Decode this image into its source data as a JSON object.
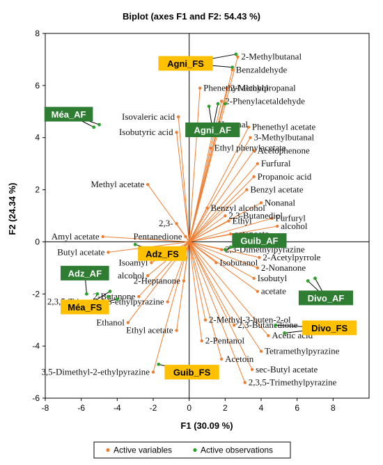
{
  "chart_data": {
    "type": "scatter",
    "title": "Biplot (axes F1 and F2: 54.43 %)",
    "xlabel": "F1 (30.09 %)",
    "ylabel": "F2 (24.34 %)",
    "xlim": [
      -8,
      10
    ],
    "ylim": [
      -6,
      8
    ],
    "xticks": [
      "-8",
      "-6",
      "-4",
      "-2",
      "0",
      "2",
      "4",
      "6",
      "8"
    ],
    "yticks": [
      "-6",
      "-4",
      "-2",
      "0",
      "2",
      "4",
      "6",
      "8"
    ],
    "legend": {
      "position": "bottom",
      "entries": [
        {
          "label": "Active variables",
          "color": "#ed7d31"
        },
        {
          "label": "Active observations",
          "color": "#2ca02c"
        }
      ]
    },
    "colors": {
      "variables": "#ed7d31",
      "observations": "#2ca02c",
      "fs_box": "#ffc000",
      "af_box": "#2e7d32"
    },
    "variables": [
      {
        "label": "2-Methylbutanal",
        "x": 2.7,
        "y": 7.1
      },
      {
        "label": "Benzaldehyde",
        "x": 2.4,
        "y": 6.6
      },
      {
        "label": "2-Methylpropanal",
        "x": 2.1,
        "y": 5.9
      },
      {
        "label": "2-Phenylacetaldehyde",
        "x": 1.8,
        "y": 5.4
      },
      {
        "label": "Phenethyl alcohol",
        "x": 0.6,
        "y": 5.9
      },
      {
        "label": "Isovaleric acid",
        "x": -0.6,
        "y": 4.8
      },
      {
        "label": "Hexanal",
        "x": 1.4,
        "y": 4.5
      },
      {
        "label": "Phenethyl acetate",
        "x": 3.3,
        "y": 4.4
      },
      {
        "label": "3-Methylbutanal",
        "x": 3.4,
        "y": 4.0
      },
      {
        "label": "Isobutyric acid",
        "x": -0.7,
        "y": 4.2
      },
      {
        "label": "Acetophenone",
        "x": 3.6,
        "y": 3.5
      },
      {
        "label": "Ethyl phenylacetate",
        "x": 1.2,
        "y": 3.6
      },
      {
        "label": "Furfural",
        "x": 3.8,
        "y": 3.0
      },
      {
        "label": "Propanoic acid",
        "x": 3.6,
        "y": 2.5
      },
      {
        "label": "Benzyl acetate",
        "x": 3.2,
        "y": 2.0
      },
      {
        "label": "Methyl acetate",
        "x": -2.3,
        "y": 2.2
      },
      {
        "label": "Nonanal",
        "x": 4.0,
        "y": 1.5
      },
      {
        "label": "Benzyl alcohol",
        "x": 1.0,
        "y": 1.3
      },
      {
        "label": "2,3-Butanediol",
        "x": 2.0,
        "y": 1.0
      },
      {
        "label": "Furfuryl",
        "x": 4.6,
        "y": 0.9
      },
      {
        "label": "alcohol",
        "x": 4.9,
        "y": 0.6
      },
      {
        "label": "Ethyl",
        "x": 2.2,
        "y": 0.8
      },
      {
        "label": "octanoate",
        "x": 2.3,
        "y": 0.3
      },
      {
        "label": "2,3-",
        "x": -0.7,
        "y": 0.7
      },
      {
        "label": "Pentanedione",
        "x": -0.2,
        "y": 0.2
      },
      {
        "label": "Amyl acetate",
        "x": -4.8,
        "y": 0.2
      },
      {
        "label": "Butyl acetate",
        "x": -4.5,
        "y": -0.4
      },
      {
        "label": "2,3-Dimethylpyrazine",
        "x": 1.8,
        "y": -0.3
      },
      {
        "label": "2-Acetylpyrrole",
        "x": 3.9,
        "y": -0.6
      },
      {
        "label": "Isobutanol",
        "x": 1.5,
        "y": -0.8
      },
      {
        "label": "Isoamyl",
        "x": -2.1,
        "y": -0.8
      },
      {
        "label": "2-Nonanone",
        "x": 3.8,
        "y": -1.0
      },
      {
        "label": "alcohol",
        "x": -2.3,
        "y": -1.3
      },
      {
        "label": "Isobutyl",
        "x": 3.6,
        "y": -1.4
      },
      {
        "label": "2-Heptanone",
        "x": -0.3,
        "y": -1.5
      },
      {
        "label": "acetate",
        "x": 3.8,
        "y": -1.9
      },
      {
        "label": "2-Butanone",
        "x": -2.8,
        "y": -2.1
      },
      {
        "label": "2,3,5-Trimethyl-6-ethylpyrazine",
        "x": -1.2,
        "y": -2.3
      },
      {
        "label": "2-Methyl-3-buten-2-ol",
        "x": 0.9,
        "y": -3.0
      },
      {
        "label": "Ethanol",
        "x": -3.4,
        "y": -3.1
      },
      {
        "label": "2,3-Butanedione",
        "x": 2.5,
        "y": -3.2
      },
      {
        "label": "Acetic acid",
        "x": 4.4,
        "y": -3.6
      },
      {
        "label": "Ethyl acetate",
        "x": -0.7,
        "y": -3.4
      },
      {
        "label": "2-Pentanol",
        "x": 0.7,
        "y": -3.8
      },
      {
        "label": "Tetramethylpyrazine",
        "x": 4.0,
        "y": -4.2
      },
      {
        "label": "Acetoin",
        "x": 1.8,
        "y": -4.5
      },
      {
        "label": "sec-Butyl acetate",
        "x": 3.5,
        "y": -4.9
      },
      {
        "label": "3,5-Dimethyl-2-ethylpyrazine",
        "x": -2.0,
        "y": -5.0
      },
      {
        "label": "2,3,5-Trimethylpyrazine",
        "x": 3.1,
        "y": -5.4
      }
    ],
    "observations": [
      {
        "label": "Agni_FS",
        "group": "FS",
        "x": 2.6,
        "y": 7.2
      },
      {
        "label": "Agni_FS",
        "group": "FS",
        "x": 2.4,
        "y": 6.7
      },
      {
        "label": "Agni_FS",
        "group": "FS",
        "x": 2.0,
        "y": 5.3
      },
      {
        "label": "Méa_AF",
        "group": "AF",
        "x": -5.3,
        "y": 4.4
      },
      {
        "label": "Méa_AF",
        "group": "AF",
        "x": -5.0,
        "y": 4.5
      },
      {
        "label": "Agni_AF",
        "group": "AF",
        "x": 1.1,
        "y": 5.2
      },
      {
        "label": "Agni_AF",
        "group": "AF",
        "x": 1.6,
        "y": 5.3
      },
      {
        "label": "Guib_AF",
        "group": "AF",
        "x": 2.3,
        "y": -0.2
      },
      {
        "label": "Guib_AF",
        "group": "AF",
        "x": 2.0,
        "y": -0.3
      },
      {
        "label": "Adz_FS",
        "group": "FS",
        "x": -3.0,
        "y": -0.1
      },
      {
        "label": "Adz_AF",
        "group": "AF",
        "x": -5.7,
        "y": -2.0
      },
      {
        "label": "Méa_FS",
        "group": "FS",
        "x": -4.0,
        "y": -2.2
      },
      {
        "label": "Méa_FS",
        "group": "FS",
        "x": -4.4,
        "y": -1.9
      },
      {
        "label": "Méa_FS",
        "group": "FS",
        "x": -4.5,
        "y": -2.1
      },
      {
        "label": "Méa_FS",
        "group": "FS",
        "x": -4.7,
        "y": -2.6
      },
      {
        "label": "Méa_FS",
        "group": "FS",
        "x": -5.1,
        "y": -2.0
      },
      {
        "label": "Divo_AF",
        "group": "AF",
        "x": 6.6,
        "y": -1.5
      },
      {
        "label": "Divo_AF",
        "group": "AF",
        "x": 7.0,
        "y": -1.4
      },
      {
        "label": "Divo_FS",
        "group": "FS",
        "x": 4.8,
        "y": -3.2
      },
      {
        "label": "Divo_FS",
        "group": "FS",
        "x": 5.3,
        "y": -3.5
      },
      {
        "label": "Guib_FS",
        "group": "FS",
        "x": -1.7,
        "y": -4.7
      }
    ],
    "observation_boxes": [
      {
        "label": "Agni_FS",
        "group": "FS",
        "x": -0.2,
        "y": 6.85,
        "points": [
          0,
          1
        ]
      },
      {
        "label": "Méa_AF",
        "group": "AF",
        "x": -6.7,
        "y": 4.9,
        "points": [
          3,
          4
        ]
      },
      {
        "label": "Agni_AF",
        "group": "AF",
        "x": 1.3,
        "y": 4.3,
        "points": [
          5,
          6
        ]
      },
      {
        "label": "Guib_AF",
        "group": "AF",
        "x": 3.9,
        "y": 0.05,
        "points": [
          7,
          8
        ]
      },
      {
        "label": "Adz_FS",
        "group": "FS",
        "x": -1.5,
        "y": -0.45,
        "points": [
          9
        ]
      },
      {
        "label": "Adz_AF",
        "group": "AF",
        "x": -5.8,
        "y": -1.2,
        "points": [
          10
        ]
      },
      {
        "label": "Méa_FS",
        "group": "FS",
        "x": -5.8,
        "y": -2.5,
        "points": [
          11,
          12
        ]
      },
      {
        "label": "Divo_AF",
        "group": "AF",
        "x": 7.6,
        "y": -2.15,
        "points": [
          16,
          17
        ]
      },
      {
        "label": "Divo_FS",
        "group": "FS",
        "x": 7.8,
        "y": -3.3,
        "points": [
          18,
          19
        ]
      },
      {
        "label": "Guib_FS",
        "group": "FS",
        "x": 0.15,
        "y": -5.0,
        "points": [
          20
        ]
      }
    ]
  }
}
